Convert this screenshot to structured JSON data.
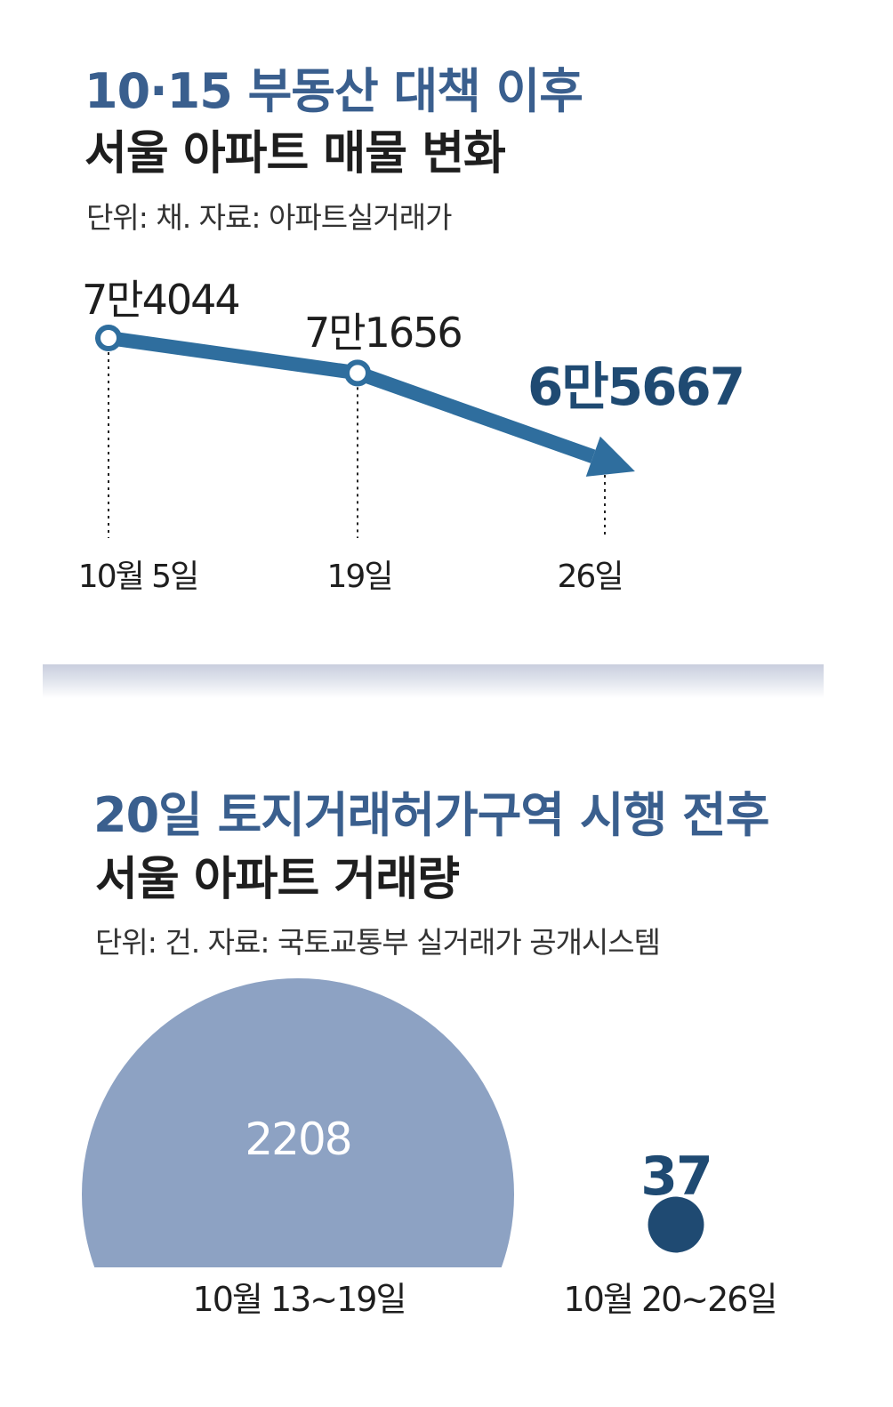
{
  "section1": {
    "title_line1": "10·15 부동산 대책 이후",
    "title_line2": "서울 아파트 매물 변화",
    "unit_source": "단위: 채. 자료: 아파트실거래가"
  },
  "section2": {
    "title_line1": "20일 토지거래허가구역 시행 전후",
    "title_line2": "서울 아파트 거래량",
    "unit_source": "단위: 건. 자료: 국토교통부 실거래가 공개시스템"
  },
  "colors": {
    "title_blue": "#3a5f8e",
    "line_blue": "#2f6e9e",
    "dark_navy": "#1f4a72",
    "bubble_blue": "#8da2c3"
  },
  "chart_data": [
    {
      "type": "line",
      "categories": [
        "10월 5일",
        "19일",
        "26일"
      ],
      "values": [
        74044,
        71656,
        65667
      ],
      "value_labels": [
        "7만4044",
        "7만1656",
        "6만5667"
      ],
      "highlight_last": true,
      "ylim": [
        60000,
        76000
      ],
      "grid": false
    },
    {
      "type": "bubble",
      "categories": [
        "10월 13~19일",
        "10월 20~26일"
      ],
      "values": [
        2208,
        37
      ],
      "value_labels": [
        "2208",
        "37"
      ]
    }
  ]
}
